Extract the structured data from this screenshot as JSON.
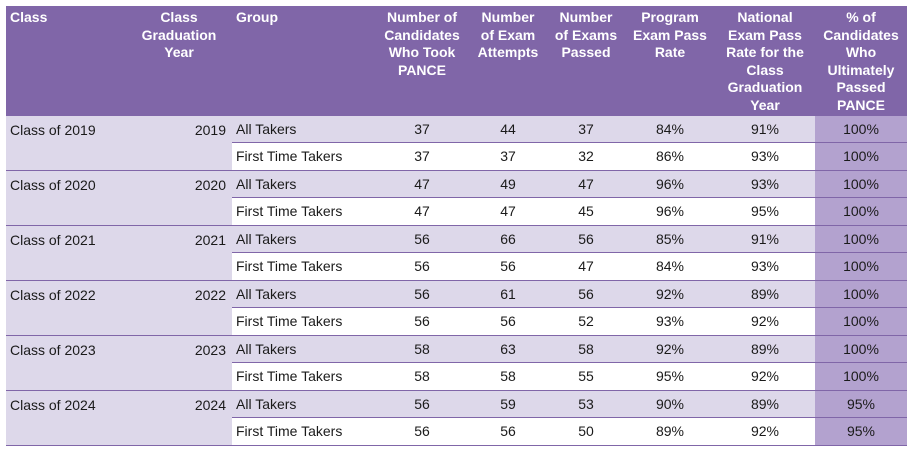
{
  "headers": [
    "Class",
    "Class\nGraduation\nYear",
    "Group",
    "Number of\nCandidates\nWho Took\nPANCE",
    "Number\nof Exam\nAttempts",
    "Number\nof Exams\nPassed",
    "Program\nExam Pass\nRate",
    "National\nExam Pass\nRate for the\nClass\nGraduation\nYear",
    "% of\nCandidates\nWho\nUltimately\nPassed\nPANCE"
  ],
  "classes": [
    {
      "label": "Class of 2019",
      "year": "2019",
      "rows": [
        {
          "group": "All Takers",
          "candidates": "37",
          "attempts": "44",
          "passed": "37",
          "program": "84%",
          "national": "91%",
          "ultimate": "100%"
        },
        {
          "group": "First Time Takers",
          "candidates": "37",
          "attempts": "37",
          "passed": "32",
          "program": "86%",
          "national": "93%",
          "ultimate": "100%"
        }
      ]
    },
    {
      "label": "Class of 2020",
      "year": "2020",
      "rows": [
        {
          "group": "All Takers",
          "candidates": "47",
          "attempts": "49",
          "passed": "47",
          "program": "96%",
          "national": "93%",
          "ultimate": "100%"
        },
        {
          "group": "First Time Takers",
          "candidates": "47",
          "attempts": "47",
          "passed": "45",
          "program": "96%",
          "national": "95%",
          "ultimate": "100%"
        }
      ]
    },
    {
      "label": "Class of 2021",
      "year": "2021",
      "rows": [
        {
          "group": "All Takers",
          "candidates": "56",
          "attempts": "66",
          "passed": "56",
          "program": "85%",
          "national": "91%",
          "ultimate": "100%"
        },
        {
          "group": "First Time Takers",
          "candidates": "56",
          "attempts": "56",
          "passed": "47",
          "program": "84%",
          "national": "93%",
          "ultimate": "100%"
        }
      ]
    },
    {
      "label": "Class of 2022",
      "year": "2022",
      "rows": [
        {
          "group": "All Takers",
          "candidates": "56",
          "attempts": "61",
          "passed": "56",
          "program": "92%",
          "national": "89%",
          "ultimate": "100%"
        },
        {
          "group": "First Time Takers",
          "candidates": "56",
          "attempts": "56",
          "passed": "52",
          "program": "93%",
          "national": "92%",
          "ultimate": "100%"
        }
      ]
    },
    {
      "label": "Class of 2023",
      "year": "2023",
      "rows": [
        {
          "group": "All Takers",
          "candidates": "58",
          "attempts": "63",
          "passed": "58",
          "program": "92%",
          "national": "89%",
          "ultimate": "100%"
        },
        {
          "group": "First Time Takers",
          "candidates": "58",
          "attempts": "58",
          "passed": "55",
          "program": "95%",
          "national": "92%",
          "ultimate": "100%"
        }
      ]
    },
    {
      "label": "Class of 2024",
      "year": "2024",
      "rows": [
        {
          "group": "All Takers",
          "candidates": "56",
          "attempts": "59",
          "passed": "53",
          "program": "90%",
          "national": "89%",
          "ultimate": "95%"
        },
        {
          "group": "First Time Takers",
          "candidates": "56",
          "attempts": "56",
          "passed": "50",
          "program": "89%",
          "national": "92%",
          "ultimate": "95%"
        }
      ]
    }
  ],
  "colors": {
    "header_bg": "#8066a8",
    "row_shade": "#ddd8ea",
    "pct_column": "#b3a2cf",
    "border": "#8066a8"
  }
}
